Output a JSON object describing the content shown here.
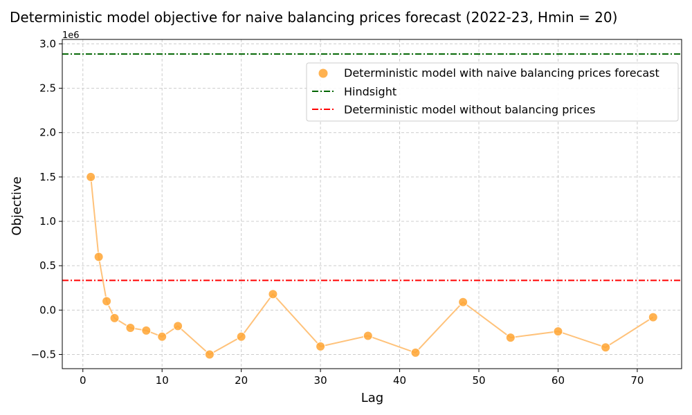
{
  "chart_data": {
    "type": "scatter",
    "title": "Deterministic model objective for naive balancing prices forecast (2022-23, Hmin = 20)",
    "xlabel": "Lag",
    "ylabel": "Objective",
    "y_offset_label": "1e6",
    "xlim": [
      -2.6,
      75.6
    ],
    "ylim": [
      -0.66,
      3.05
    ],
    "xticks": [
      0,
      10,
      20,
      30,
      40,
      50,
      60,
      70
    ],
    "xtick_labels": [
      "0",
      "10",
      "20",
      "30",
      "40",
      "50",
      "60",
      "70"
    ],
    "yticks": [
      -0.5,
      0.0,
      0.5,
      1.0,
      1.5,
      2.0,
      2.5,
      3.0
    ],
    "ytick_labels": [
      "−0.5",
      "0.0",
      "0.5",
      "1.0",
      "1.5",
      "2.0",
      "2.5",
      "3.0"
    ],
    "grid": true,
    "legend_position": "top-right",
    "series": [
      {
        "name": "Deterministic model with naive balancing prices forecast",
        "kind": "scatter+line",
        "color": "#ffa533",
        "line_color": "#ffc27a",
        "x": [
          1,
          2,
          3,
          4,
          6,
          8,
          10,
          12,
          16,
          20,
          24,
          30,
          36,
          42,
          48,
          54,
          60,
          66,
          72
        ],
        "y": [
          1.5,
          0.6,
          0.1,
          -0.09,
          -0.2,
          -0.23,
          -0.3,
          -0.18,
          -0.5,
          -0.3,
          0.18,
          -0.41,
          -0.29,
          -0.48,
          0.09,
          -0.31,
          -0.24,
          -0.42,
          -0.08
        ]
      },
      {
        "name": "Hindsight",
        "kind": "hline",
        "color": "#006400",
        "y": 2.885
      },
      {
        "name": "Deterministic model without balancing prices",
        "kind": "hline",
        "color": "#ff0000",
        "y": 0.335
      }
    ]
  }
}
